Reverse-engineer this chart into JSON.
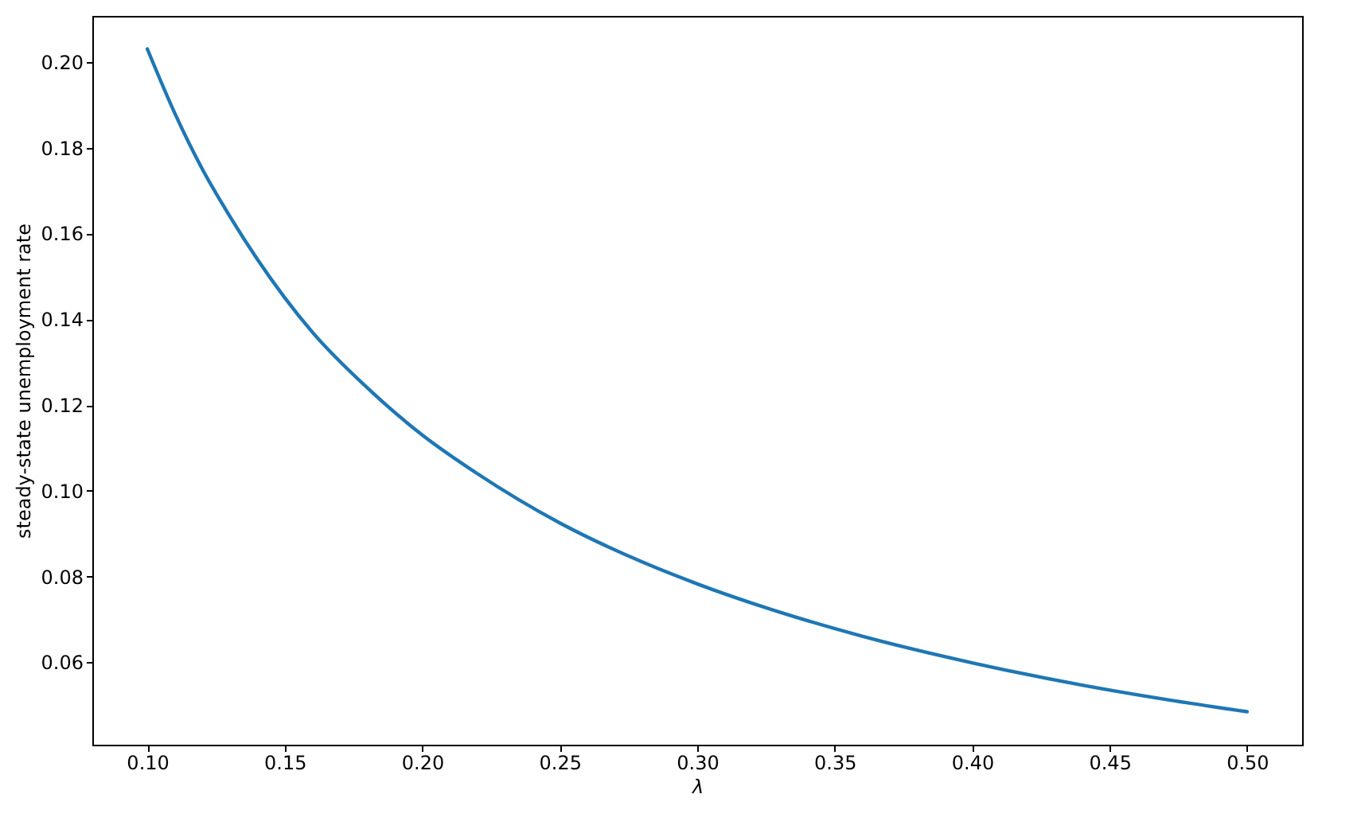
{
  "chart_data": {
    "type": "line",
    "xlabel": "λ",
    "ylabel": "steady-state unemployment rate",
    "x": [
      0.1,
      0.11,
      0.12,
      0.13,
      0.14,
      0.16,
      0.18,
      0.2,
      0.22,
      0.25,
      0.28,
      0.3,
      0.33,
      0.36,
      0.4,
      0.44,
      0.47,
      0.5
    ],
    "series": [
      {
        "color": "#1f77b4",
        "values": [
          0.203,
          0.188,
          0.175,
          0.164,
          0.154,
          0.137,
          0.124,
          0.113,
          0.104,
          0.0925,
          0.0834,
          0.0783,
          0.0717,
          0.0661,
          0.0599,
          0.0547,
          0.0514,
          0.0485
        ]
      }
    ],
    "xlim": [
      0.08,
      0.52
    ],
    "ylim": [
      0.0408,
      0.2107
    ],
    "xticks": [
      {
        "value": 0.1,
        "label": "0.10"
      },
      {
        "value": 0.15,
        "label": "0.15"
      },
      {
        "value": 0.2,
        "label": "0.20"
      },
      {
        "value": 0.25,
        "label": "0.25"
      },
      {
        "value": 0.3,
        "label": "0.30"
      },
      {
        "value": 0.35,
        "label": "0.35"
      },
      {
        "value": 0.4,
        "label": "0.40"
      },
      {
        "value": 0.45,
        "label": "0.45"
      },
      {
        "value": 0.5,
        "label": "0.50"
      }
    ],
    "yticks": [
      {
        "value": 0.06,
        "label": "0.06"
      },
      {
        "value": 0.08,
        "label": "0.08"
      },
      {
        "value": 0.1,
        "label": "0.10"
      },
      {
        "value": 0.12,
        "label": "0.12"
      },
      {
        "value": 0.14,
        "label": "0.14"
      },
      {
        "value": 0.16,
        "label": "0.16"
      },
      {
        "value": 0.18,
        "label": "0.18"
      },
      {
        "value": 0.2,
        "label": "0.20"
      }
    ],
    "grid": false,
    "marker": "none",
    "line_style": "solid"
  }
}
